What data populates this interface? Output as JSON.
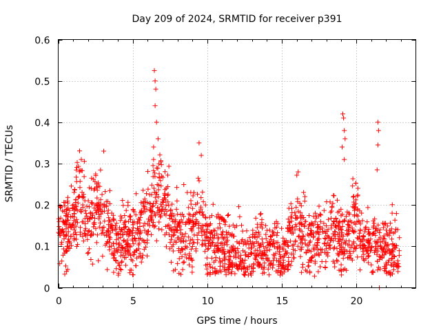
{
  "chart_data": {
    "type": "scatter",
    "title": "Day 209 of 2024, SRMTID for receiver p391",
    "xlabel": "GPS time / hours",
    "ylabel": "SRMTID / TECUs",
    "xlim": [
      0,
      24
    ],
    "ylim": [
      0,
      0.6
    ],
    "xticks": [
      0,
      5,
      10,
      15,
      20
    ],
    "xtick_labels": [
      "0",
      "5",
      "10",
      "15",
      "20"
    ],
    "yticks": [
      0,
      0.1,
      0.2,
      0.3,
      0.4,
      0.5,
      0.6
    ],
    "ytick_labels": [
      "0",
      "0.1",
      "0.2",
      "0.3",
      "0.4",
      "0.5",
      "0.6"
    ],
    "grid": true,
    "marker": "+",
    "series": [
      {
        "name": "SRMTID",
        "color": "#ff0000",
        "x_range": [
          0,
          22.9
        ],
        "trend": [
          [
            0.0,
            0.14
          ],
          [
            0.5,
            0.13
          ],
          [
            1.0,
            0.15
          ],
          [
            1.5,
            0.24
          ],
          [
            2.0,
            0.15
          ],
          [
            2.5,
            0.19
          ],
          [
            3.0,
            0.17
          ],
          [
            3.5,
            0.13
          ],
          [
            4.0,
            0.09
          ],
          [
            4.5,
            0.12
          ],
          [
            5.0,
            0.11
          ],
          [
            5.5,
            0.13
          ],
          [
            6.0,
            0.17
          ],
          [
            6.5,
            0.24
          ],
          [
            7.0,
            0.22
          ],
          [
            7.5,
            0.16
          ],
          [
            8.0,
            0.13
          ],
          [
            8.5,
            0.13
          ],
          [
            9.0,
            0.14
          ],
          [
            9.5,
            0.18
          ],
          [
            10.0,
            0.11
          ],
          [
            10.5,
            0.09
          ],
          [
            11.0,
            0.11
          ],
          [
            11.5,
            0.08
          ],
          [
            12.0,
            0.1
          ],
          [
            12.5,
            0.06
          ],
          [
            13.0,
            0.09
          ],
          [
            13.5,
            0.1
          ],
          [
            14.0,
            0.09
          ],
          [
            14.5,
            0.1
          ],
          [
            15.0,
            0.07
          ],
          [
            15.5,
            0.11
          ],
          [
            16.0,
            0.16
          ],
          [
            16.5,
            0.13
          ],
          [
            17.0,
            0.11
          ],
          [
            17.5,
            0.12
          ],
          [
            18.0,
            0.12
          ],
          [
            18.5,
            0.14
          ],
          [
            19.0,
            0.1
          ],
          [
            19.5,
            0.12
          ],
          [
            20.0,
            0.17
          ],
          [
            20.5,
            0.12
          ],
          [
            21.0,
            0.1
          ],
          [
            21.5,
            0.11
          ],
          [
            22.0,
            0.09
          ],
          [
            22.5,
            0.11
          ],
          [
            22.9,
            0.07
          ]
        ],
        "spikes": [
          [
            6.45,
            0.525
          ],
          [
            6.5,
            0.5
          ],
          [
            6.55,
            0.48
          ],
          [
            6.5,
            0.44
          ],
          [
            6.6,
            0.4
          ],
          [
            6.7,
            0.36
          ],
          [
            6.4,
            0.34
          ],
          [
            9.45,
            0.35
          ],
          [
            9.6,
            0.32
          ],
          [
            3.05,
            0.33
          ],
          [
            1.55,
            0.31
          ],
          [
            19.1,
            0.42
          ],
          [
            19.15,
            0.41
          ],
          [
            19.2,
            0.38
          ],
          [
            19.25,
            0.36
          ],
          [
            19.05,
            0.34
          ],
          [
            19.2,
            0.31
          ],
          [
            21.45,
            0.4
          ],
          [
            21.5,
            0.38
          ],
          [
            21.45,
            0.345
          ],
          [
            21.4,
            0.285
          ],
          [
            16.1,
            0.28
          ],
          [
            4.05,
            0.035
          ],
          [
            10.05,
            0.035
          ],
          [
            17.2,
            0.028
          ],
          [
            21.55,
            0.0
          ]
        ]
      }
    ]
  }
}
